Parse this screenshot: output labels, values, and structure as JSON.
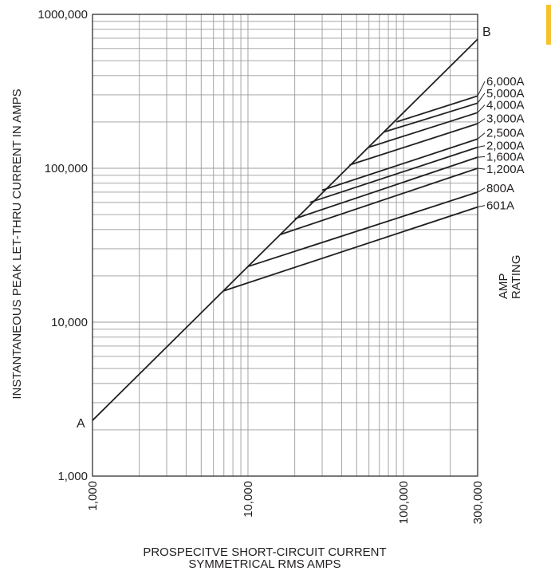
{
  "chart_data": {
    "type": "line",
    "scale": "log-log",
    "title": "",
    "xlabel": [
      "PROSPECITVE SHORT-CIRCUIT CURRENT",
      "SYMMETRICAL RMS AMPS"
    ],
    "ylabel": "INSTANTANEOUS PEAK LET-THRU CURRENT IN AMPS",
    "xlim": [
      1000,
      300000
    ],
    "ylim": [
      1000,
      1000000
    ],
    "x_ticks": [
      {
        "value": 1000,
        "label": "1,000"
      },
      {
        "value": 10000,
        "label": "10,000"
      },
      {
        "value": 100000,
        "label": "100,000"
      },
      {
        "value": 300000,
        "label": "300,000"
      }
    ],
    "y_ticks": [
      {
        "value": 1000,
        "label": "1,000"
      },
      {
        "value": 10000,
        "label": "10,000"
      },
      {
        "value": 100000,
        "label": "100,000"
      },
      {
        "value": 1000000,
        "label": "1000,000"
      }
    ],
    "grid": true,
    "reference_line": {
      "name_start": "A",
      "name_end": "B",
      "points": [
        [
          1000,
          2300
        ],
        [
          300000,
          690000
        ]
      ]
    },
    "rating_title": [
      "AMP",
      "RATING"
    ],
    "series": [
      {
        "name": "601A",
        "x": [
          7000,
          300000
        ],
        "y": [
          16000,
          56000
        ]
      },
      {
        "name": "800A",
        "x": [
          10000,
          300000
        ],
        "y": [
          23000,
          70000
        ]
      },
      {
        "name": "1,200A",
        "x": [
          16000,
          300000
        ],
        "y": [
          37000,
          100000
        ]
      },
      {
        "name": "1,600A",
        "x": [
          20000,
          300000
        ],
        "y": [
          47000,
          118000
        ]
      },
      {
        "name": "2,000A",
        "x": [
          25000,
          300000
        ],
        "y": [
          60000,
          137000
        ]
      },
      {
        "name": "2,500A",
        "x": [
          30000,
          300000
        ],
        "y": [
          72000,
          155000
        ]
      },
      {
        "name": "3,000A",
        "x": [
          45000,
          300000
        ],
        "y": [
          105000,
          195000
        ]
      },
      {
        "name": "4,000A",
        "x": [
          60000,
          300000
        ],
        "y": [
          137000,
          230000
        ]
      },
      {
        "name": "5,000A",
        "x": [
          75000,
          300000
        ],
        "y": [
          172000,
          265000
        ]
      },
      {
        "name": "6,000A",
        "x": [
          90000,
          300000
        ],
        "y": [
          200000,
          295000
        ]
      }
    ],
    "rating_labels": [
      {
        "text": "6,000A",
        "y": 345000
      },
      {
        "text": "5,000A",
        "y": 290000
      },
      {
        "text": "4,000A",
        "y": 243000
      },
      {
        "text": "3,000A",
        "y": 198000
      },
      {
        "text": "2,500A",
        "y": 160000
      },
      {
        "text": "2,000A",
        "y": 132000
      },
      {
        "text": "1,600A",
        "y": 112000
      },
      {
        "text": "1,200A",
        "y": 93000
      },
      {
        "text": "800A",
        "y": 70000
      },
      {
        "text": "601A",
        "y": 54000
      }
    ]
  }
}
